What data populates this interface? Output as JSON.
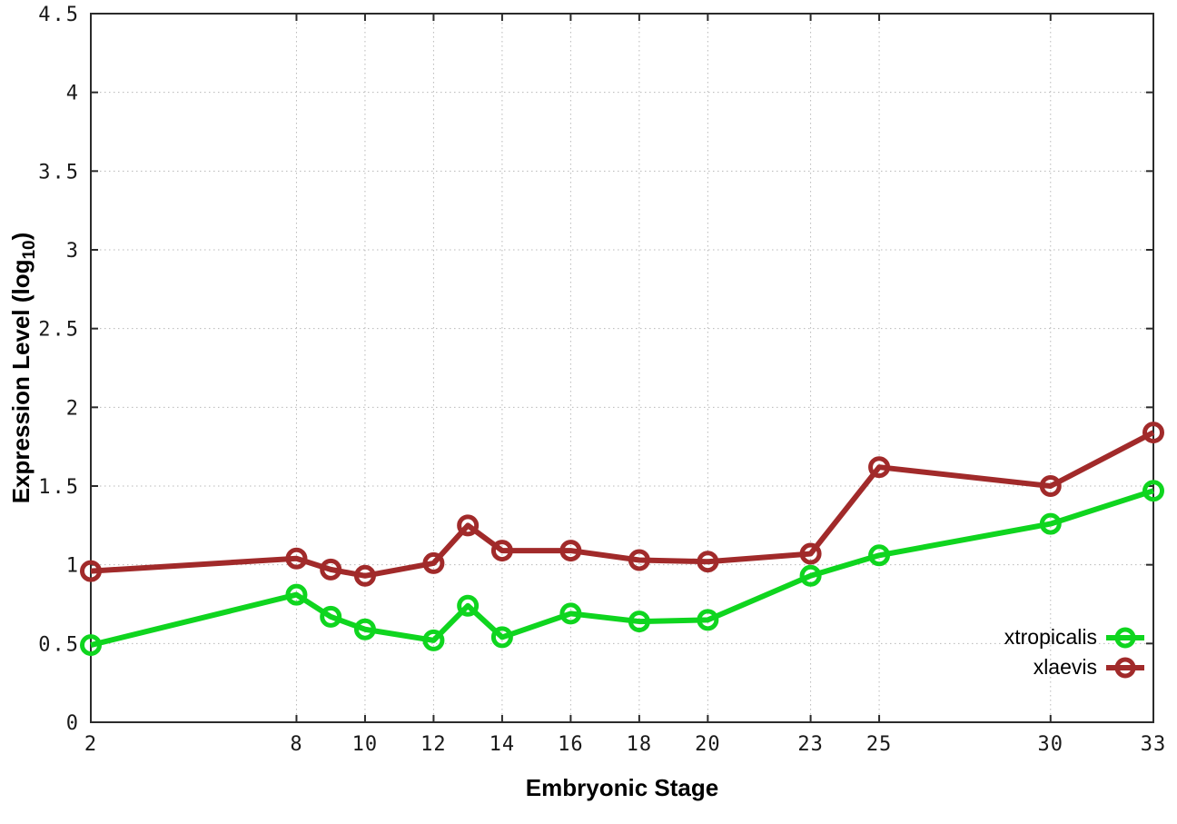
{
  "chart_data": {
    "type": "line",
    "title": "",
    "xlabel": "Embryonic Stage",
    "ylabel": "Expression Level (log10)",
    "ylabel_prefix": "Expression Level (log",
    "ylabel_sub": "10",
    "ylabel_suffix": ")",
    "x": [
      2,
      8,
      9,
      10,
      12,
      13,
      14,
      16,
      18,
      20,
      23,
      25,
      30,
      33
    ],
    "series": [
      {
        "name": "xtropicalis",
        "color": "#0fd51f",
        "values": [
          0.49,
          0.81,
          0.67,
          0.59,
          0.52,
          0.74,
          0.54,
          0.69,
          0.64,
          0.65,
          0.93,
          1.06,
          1.26,
          1.47
        ]
      },
      {
        "name": "xlaevis",
        "color": "#a12a2a",
        "values": [
          0.96,
          1.04,
          0.97,
          0.93,
          1.01,
          1.25,
          1.09,
          1.09,
          1.03,
          1.02,
          1.07,
          1.62,
          1.5,
          1.84
        ]
      }
    ],
    "xlim": [
      2,
      33
    ],
    "ylim": [
      0,
      4.5
    ],
    "xtick_values": [
      2,
      8,
      10,
      12,
      14,
      16,
      18,
      20,
      23,
      25,
      30,
      33
    ],
    "xtick_labels": [
      "2",
      "8",
      "10",
      "12",
      "14",
      "16",
      "18",
      "20",
      "23",
      "25",
      "30",
      "33"
    ],
    "ytick_values": [
      0,
      0.5,
      1,
      1.5,
      2,
      2.5,
      3,
      3.5,
      4,
      4.5
    ],
    "ytick_labels": [
      "0",
      "0.5",
      "1",
      "1.5",
      "2",
      "2.5",
      "3",
      "3.5",
      "4",
      "4.5"
    ],
    "grid": true,
    "legend_position": "inside-bottom-right",
    "marker": "open-circle",
    "colors": {
      "grid": "#b8b8b8",
      "border": "#2b2b2b",
      "tick_text": "#1a1a1a",
      "background": "#ffffff"
    }
  }
}
